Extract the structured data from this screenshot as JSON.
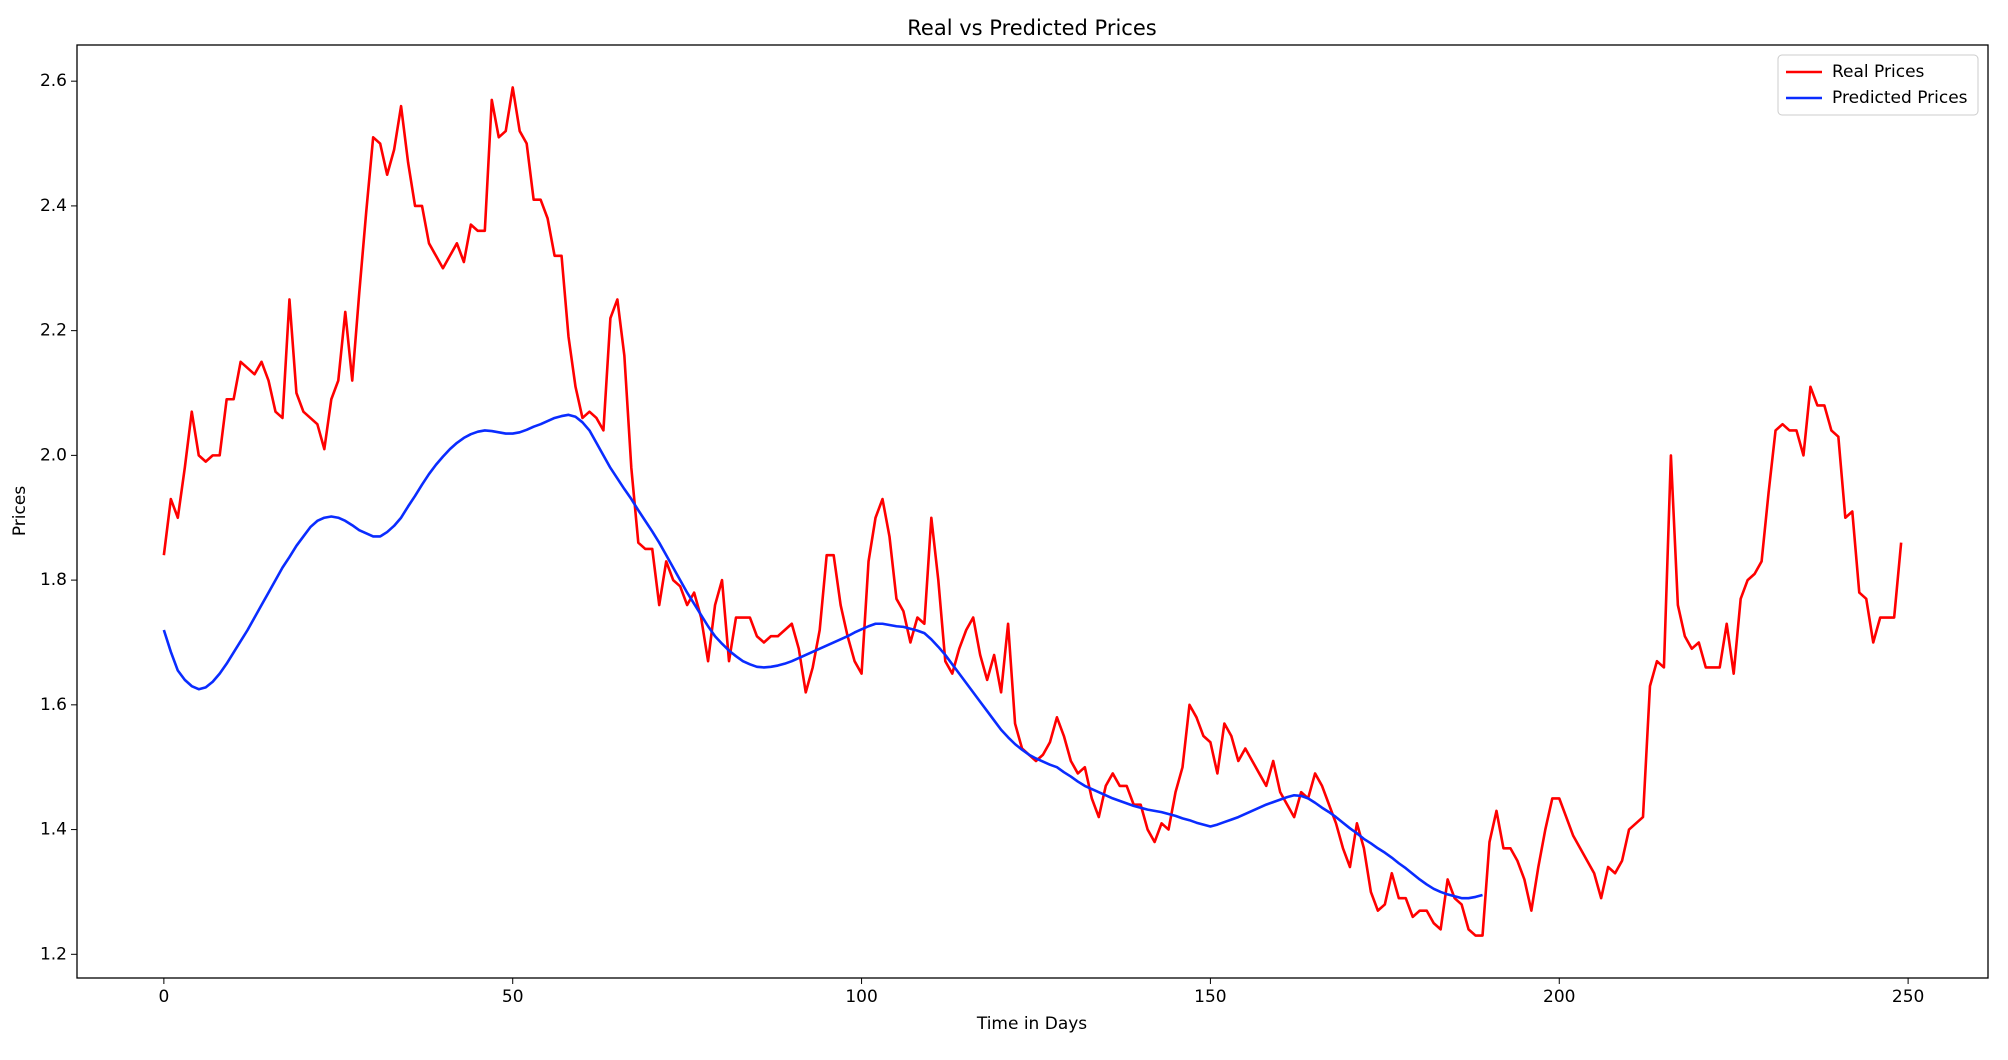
{
  "chart_data": {
    "type": "line",
    "title": "Real vs Predicted Prices",
    "x_label": "Time in Days",
    "y_label": "Prices",
    "xlim": [
      -12.45,
      261.45
    ],
    "ylim": [
      1.162,
      2.658
    ],
    "xticks": [
      0,
      50,
      100,
      150,
      200,
      250
    ],
    "yticks": [
      1.2,
      1.4,
      1.6,
      1.8,
      {
        "value": 2,
        "label": "2.0"
      },
      2.2,
      2.4,
      2.6
    ],
    "legend": "upper right",
    "grid": false,
    "x": [
      0,
      1,
      2,
      3,
      4,
      5,
      6,
      7,
      8,
      9,
      10,
      11,
      12,
      13,
      14,
      15,
      16,
      17,
      18,
      19,
      20,
      21,
      22,
      23,
      24,
      25,
      26,
      27,
      28,
      29,
      30,
      31,
      32,
      33,
      34,
      35,
      36,
      37,
      38,
      39,
      40,
      41,
      42,
      43,
      44,
      45,
      46,
      47,
      48,
      49,
      50,
      51,
      52,
      53,
      54,
      55,
      56,
      57,
      58,
      59,
      60,
      61,
      62,
      63,
      64,
      65,
      66,
      67,
      68,
      69,
      70,
      71,
      72,
      73,
      74,
      75,
      76,
      77,
      78,
      79,
      80,
      81,
      82,
      83,
      84,
      85,
      86,
      87,
      88,
      89,
      90,
      91,
      92,
      93,
      94,
      95,
      96,
      97,
      98,
      99,
      100,
      101,
      102,
      103,
      104,
      105,
      106,
      107,
      108,
      109,
      110,
      111,
      112,
      113,
      114,
      115,
      116,
      117,
      118,
      119,
      120,
      121,
      122,
      123,
      124,
      125,
      126,
      127,
      128,
      129,
      130,
      131,
      132,
      133,
      134,
      135,
      136,
      137,
      138,
      139,
      140,
      141,
      142,
      143,
      144,
      145,
      146,
      147,
      148,
      149,
      150,
      151,
      152,
      153,
      154,
      155,
      156,
      157,
      158,
      159,
      160,
      161,
      162,
      163,
      164,
      165,
      166,
      167,
      168,
      169,
      170,
      171,
      172,
      173,
      174,
      175,
      176,
      177,
      178,
      179,
      180,
      181,
      182,
      183,
      184,
      185,
      186,
      187,
      188,
      189,
      190,
      191,
      192,
      193,
      194,
      195,
      196,
      197,
      198,
      199,
      200,
      201,
      202,
      203,
      204,
      205,
      206,
      207,
      208,
      209,
      210,
      211,
      212,
      213,
      214,
      215,
      216,
      217,
      218,
      219,
      220,
      221,
      222,
      223,
      224,
      225,
      226,
      227,
      228,
      229,
      230,
      231,
      232,
      233,
      234,
      235,
      236,
      237,
      238,
      239,
      240,
      241,
      242,
      243,
      244,
      245,
      246,
      247,
      248,
      249
    ],
    "series": [
      {
        "name": "Real Prices",
        "color": "#ff0000",
        "values": [
          1.84,
          1.93,
          1.9,
          1.98,
          2.07,
          2.0,
          1.99,
          2.0,
          2.0,
          2.09,
          2.09,
          2.15,
          2.14,
          2.13,
          2.15,
          2.12,
          2.07,
          2.06,
          2.25,
          2.1,
          2.07,
          2.06,
          2.05,
          2.01,
          2.09,
          2.12,
          2.23,
          2.12,
          2.26,
          2.39,
          2.51,
          2.5,
          2.45,
          2.49,
          2.56,
          2.47,
          2.4,
          2.4,
          2.34,
          2.32,
          2.3,
          2.32,
          2.34,
          2.31,
          2.37,
          2.36,
          2.36,
          2.57,
          2.51,
          2.52,
          2.59,
          2.52,
          2.5,
          2.41,
          2.41,
          2.38,
          2.32,
          2.32,
          2.19,
          2.11,
          2.06,
          2.07,
          2.06,
          2.04,
          2.22,
          2.25,
          2.16,
          1.98,
          1.86,
          1.85,
          1.85,
          1.76,
          1.83,
          1.8,
          1.79,
          1.76,
          1.78,
          1.74,
          1.67,
          1.76,
          1.8,
          1.67,
          1.74,
          1.74,
          1.74,
          1.71,
          1.7,
          1.71,
          1.71,
          1.72,
          1.73,
          1.69,
          1.62,
          1.66,
          1.72,
          1.84,
          1.84,
          1.76,
          1.71,
          1.67,
          1.65,
          1.83,
          1.9,
          1.93,
          1.87,
          1.77,
          1.75,
          1.7,
          1.74,
          1.73,
          1.9,
          1.8,
          1.67,
          1.65,
          1.69,
          1.72,
          1.74,
          1.68,
          1.64,
          1.68,
          1.62,
          1.73,
          1.57,
          1.53,
          1.52,
          1.51,
          1.52,
          1.54,
          1.58,
          1.55,
          1.51,
          1.49,
          1.5,
          1.45,
          1.42,
          1.47,
          1.49,
          1.47,
          1.47,
          1.44,
          1.44,
          1.4,
          1.38,
          1.41,
          1.4,
          1.46,
          1.5,
          1.6,
          1.58,
          1.55,
          1.54,
          1.49,
          1.57,
          1.55,
          1.51,
          1.53,
          1.51,
          1.49,
          1.47,
          1.51,
          1.46,
          1.44,
          1.42,
          1.46,
          1.45,
          1.49,
          1.47,
          1.44,
          1.41,
          1.37,
          1.34,
          1.41,
          1.37,
          1.3,
          1.27,
          1.28,
          1.33,
          1.29,
          1.29,
          1.26,
          1.27,
          1.27,
          1.25,
          1.24,
          1.32,
          1.29,
          1.28,
          1.24,
          1.23,
          1.23,
          1.38,
          1.43,
          1.37,
          1.37,
          1.35,
          1.32,
          1.27,
          1.34,
          1.4,
          1.45,
          1.45,
          1.42,
          1.39,
          1.37,
          1.35,
          1.33,
          1.29,
          1.34,
          1.33,
          1.35,
          1.4,
          1.41,
          1.42,
          1.63,
          1.67,
          1.66,
          2.0,
          1.76,
          1.71,
          1.69,
          1.7,
          1.66,
          1.66,
          1.66,
          1.73,
          1.65,
          1.77,
          1.8,
          1.81,
          1.83,
          1.94,
          2.04,
          2.05,
          2.04,
          2.04,
          2.0,
          2.11,
          2.08,
          2.08,
          2.04,
          2.03,
          1.9,
          1.91,
          1.78,
          1.77,
          1.7,
          1.74,
          1.74,
          1.74,
          1.86
        ]
      },
      {
        "name": "Predicted Prices",
        "color": "#0a2cff",
        "values": [
          1.72,
          1.685,
          1.655,
          1.64,
          1.63,
          1.625,
          1.628,
          1.637,
          1.65,
          1.666,
          1.684,
          1.702,
          1.72,
          1.74,
          1.76,
          1.78,
          1.8,
          1.82,
          1.837,
          1.855,
          1.87,
          1.885,
          1.895,
          1.9,
          1.902,
          1.9,
          1.895,
          1.888,
          1.88,
          1.875,
          1.87,
          1.87,
          1.877,
          1.887,
          1.9,
          1.918,
          1.935,
          1.953,
          1.97,
          1.985,
          1.998,
          2.01,
          2.02,
          2.028,
          2.034,
          2.038,
          2.04,
          2.039,
          2.037,
          2.035,
          2.035,
          2.037,
          2.041,
          2.046,
          2.05,
          2.055,
          2.06,
          2.063,
          2.065,
          2.062,
          2.053,
          2.04,
          2.02,
          2.0,
          1.98,
          1.963,
          1.946,
          1.93,
          1.912,
          1.895,
          1.878,
          1.86,
          1.84,
          1.82,
          1.8,
          1.78,
          1.762,
          1.744,
          1.726,
          1.71,
          1.698,
          1.687,
          1.678,
          1.67,
          1.665,
          1.661,
          1.66,
          1.661,
          1.663,
          1.666,
          1.67,
          1.675,
          1.68,
          1.685,
          1.69,
          1.695,
          1.7,
          1.705,
          1.71,
          1.716,
          1.721,
          1.726,
          1.73,
          1.73,
          1.728,
          1.726,
          1.725,
          1.722,
          1.719,
          1.715,
          1.705,
          1.693,
          1.68,
          1.665,
          1.65,
          1.635,
          1.62,
          1.605,
          1.59,
          1.575,
          1.56,
          1.548,
          1.537,
          1.528,
          1.52,
          1.514,
          1.509,
          1.504,
          1.5,
          1.492,
          1.485,
          1.477,
          1.47,
          1.465,
          1.46,
          1.455,
          1.45,
          1.446,
          1.442,
          1.438,
          1.435,
          1.432,
          1.43,
          1.428,
          1.425,
          1.422,
          1.418,
          1.415,
          1.411,
          1.408,
          1.405,
          1.408,
          1.412,
          1.416,
          1.42,
          1.425,
          1.43,
          1.435,
          1.44,
          1.444,
          1.448,
          1.452,
          1.455,
          1.454,
          1.45,
          1.443,
          1.435,
          1.428,
          1.42,
          1.411,
          1.402,
          1.394,
          1.385,
          1.378,
          1.37,
          1.363,
          1.355,
          1.346,
          1.338,
          1.329,
          1.32,
          1.312,
          1.305,
          1.3,
          1.296,
          1.293,
          1.29,
          1.29,
          1.292,
          1.295,
          null,
          null,
          null,
          null,
          null,
          null,
          null,
          null,
          null,
          null,
          null,
          null,
          null,
          null,
          null,
          null,
          null,
          null,
          null,
          null,
          null,
          null,
          null,
          null,
          null,
          null,
          null,
          null,
          null,
          null,
          null,
          null,
          null,
          null,
          null,
          null,
          null,
          null,
          null,
          null,
          null,
          null,
          null,
          null,
          null,
          null,
          null,
          null,
          null,
          null,
          null,
          null,
          null,
          null,
          null,
          null,
          null,
          null,
          null,
          null
        ]
      }
    ]
  }
}
